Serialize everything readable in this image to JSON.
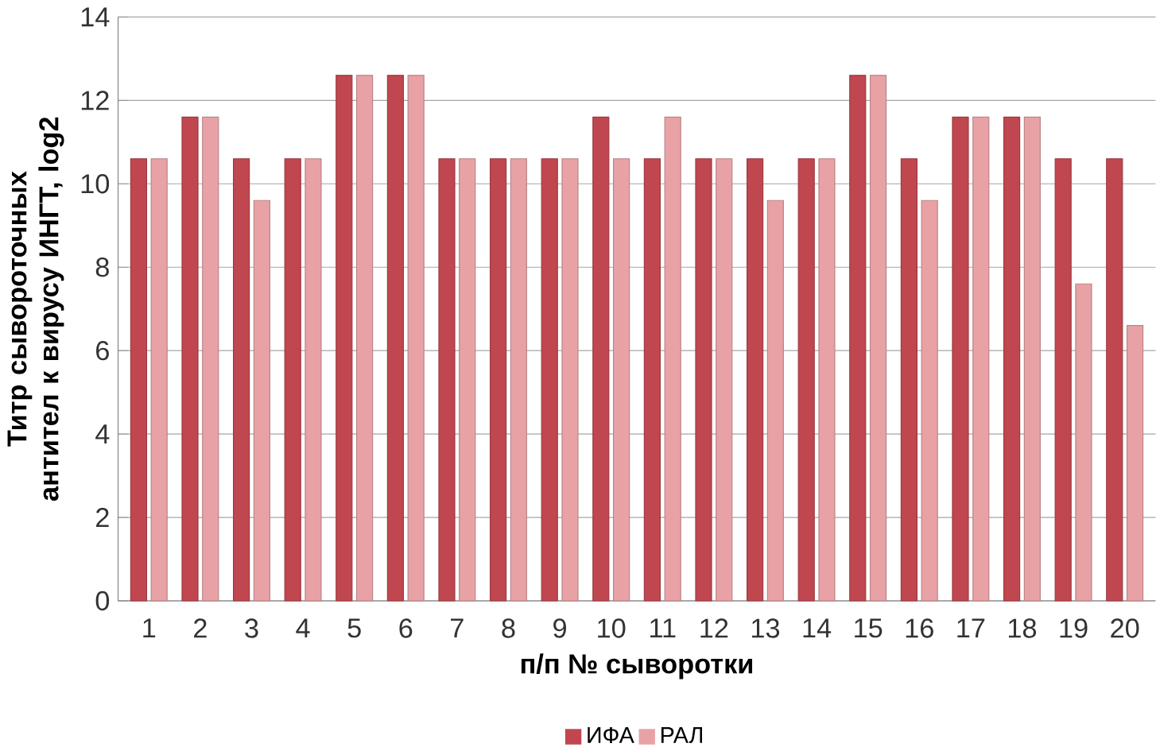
{
  "chart_data": {
    "type": "bar",
    "xlabel": "п/п № сыворотки",
    "ylabel": "Титр сывороточных антител к вирусу ИНГТ, log2",
    "categories": [
      "1",
      "2",
      "3",
      "4",
      "5",
      "6",
      "7",
      "8",
      "9",
      "10",
      "11",
      "12",
      "13",
      "14",
      "15",
      "16",
      "17",
      "18",
      "19",
      "20"
    ],
    "series": [
      {
        "name": "ИФА",
        "color": "#c0474f",
        "values": [
          10.6,
          11.6,
          10.6,
          10.6,
          12.6,
          12.6,
          10.6,
          10.6,
          10.6,
          11.6,
          10.6,
          10.6,
          10.6,
          10.6,
          12.6,
          10.6,
          11.6,
          11.6,
          10.6,
          10.6
        ]
      },
      {
        "name": "РАЛ",
        "color": "#e8a2a6",
        "values": [
          10.6,
          11.6,
          9.6,
          10.6,
          12.6,
          12.6,
          10.6,
          10.6,
          10.6,
          10.6,
          11.6,
          10.6,
          9.6,
          10.6,
          12.6,
          9.6,
          11.6,
          11.6,
          7.6,
          6.6
        ]
      }
    ],
    "ylim": [
      0,
      14
    ],
    "yticks": [
      0,
      2,
      4,
      6,
      8,
      10,
      12,
      14
    ],
    "grid": "y",
    "legend": "bottom"
  }
}
